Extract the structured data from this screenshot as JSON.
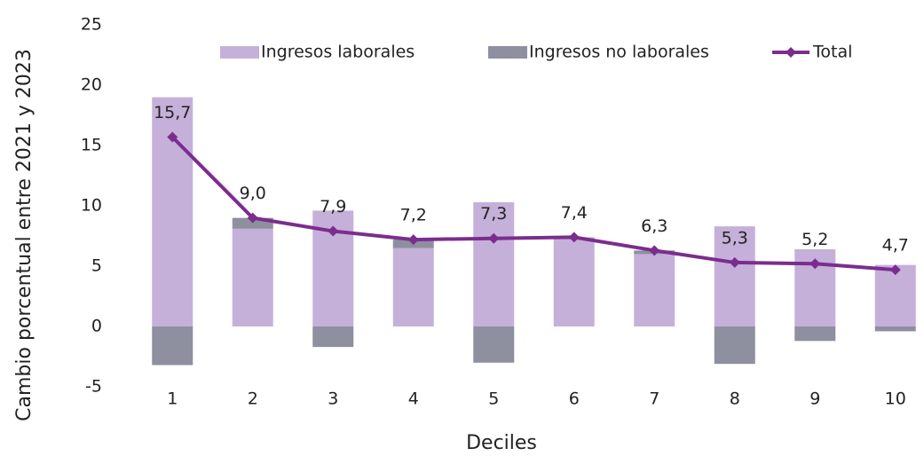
{
  "chart_data": {
    "type": "bar",
    "y_label": "Cambio porcentual entre 2021 y 2023",
    "x_label": "Deciles",
    "categories": [
      "1",
      "2",
      "3",
      "4",
      "5",
      "6",
      "7",
      "8",
      "9",
      "10"
    ],
    "series": [
      {
        "name": "Ingresos laborales",
        "color": "#c5b0da",
        "values": [
          19.0,
          8.1,
          9.6,
          6.5,
          10.3,
          7.4,
          6.0,
          8.3,
          6.4,
          5.1
        ]
      },
      {
        "name": "Ingresos no laborales",
        "color": "#8e8f9f",
        "values": [
          -3.2,
          0.9,
          -1.7,
          0.7,
          -3.0,
          0,
          0.3,
          -3.1,
          -1.2,
          -0.4
        ]
      },
      {
        "name": "Total",
        "color": "#7b2d8e",
        "type": "line",
        "values": [
          15.7,
          9.0,
          7.9,
          7.2,
          7.3,
          7.4,
          6.3,
          5.3,
          5.2,
          4.7
        ],
        "value_labels": [
          "15,7",
          "9,0",
          "7,9",
          "7,2",
          "7,3",
          "7,4",
          "6,3",
          "5,3",
          "5,2",
          "4,7"
        ]
      }
    ],
    "ylim": [
      -5,
      25
    ],
    "yticks": [
      -5,
      0,
      5,
      10,
      15,
      20,
      25
    ],
    "grid": false,
    "legend": "top"
  }
}
